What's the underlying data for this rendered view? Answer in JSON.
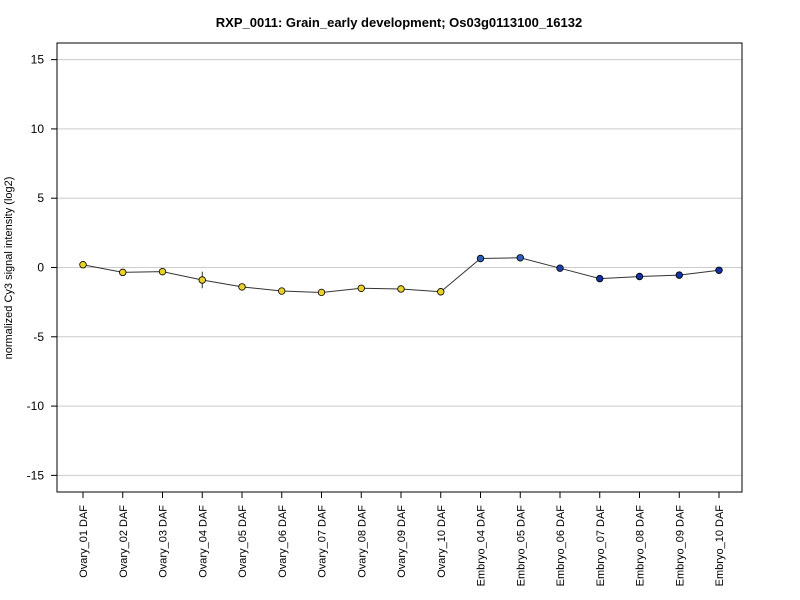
{
  "chart_data": {
    "type": "line",
    "title": "RXP_0011: Grain_early development; Os03g0113100_16132",
    "xlabel": "",
    "ylabel": "normalized Cy3 signal intensity (log2)",
    "ylim": [
      -16.2,
      16.2
    ],
    "yticks": [
      -15,
      -10,
      -5,
      0,
      5,
      10,
      15
    ],
    "ytick_labels": [
      "-15",
      "-10",
      "-5",
      "0",
      "5",
      "10",
      "15"
    ],
    "grid": "horizontal",
    "categories": [
      "Ovary_01 DAF",
      "Ovary_02 DAF",
      "Ovary_03 DAF",
      "Ovary_04 DAF",
      "Ovary_05 DAF",
      "Ovary_06 DAF",
      "Ovary_07 DAF",
      "Ovary_08 DAF",
      "Ovary_09 DAF",
      "Ovary_10 DAF",
      "Embryo_04 DAF",
      "Embryo_05 DAF",
      "Embryo_06 DAF",
      "Embryo_07 DAF",
      "Embryo_08 DAF",
      "Embryo_09 DAF",
      "Embryo_10 DAF"
    ],
    "values": [
      0.2,
      -0.35,
      -0.3,
      -0.9,
      -1.4,
      -1.7,
      -1.8,
      -1.5,
      -1.55,
      -1.75,
      0.65,
      0.7,
      -0.05,
      -0.8,
      -0.65,
      -0.55,
      -0.2
    ],
    "errors": [
      0.15,
      0.1,
      0.1,
      0.6,
      0.1,
      0.1,
      0.1,
      0.1,
      0.1,
      0.1,
      0.1,
      0.1,
      0.1,
      0.1,
      0.1,
      0.1,
      0.1
    ],
    "point_colors": [
      "#e8d22a",
      "#e8d22a",
      "#e8d22a",
      "#e8d22a",
      "#e8d22a",
      "#e8d22a",
      "#e8d22a",
      "#e8d22a",
      "#e8d22a",
      "#e8d22a",
      "#2b5fbf",
      "#2b5fbf",
      "#1f3fa8",
      "#1530a0",
      "#1530a0",
      "#1530a0",
      "#1530a0"
    ],
    "line_color": "#333333",
    "grid_color": "#cccccc"
  }
}
